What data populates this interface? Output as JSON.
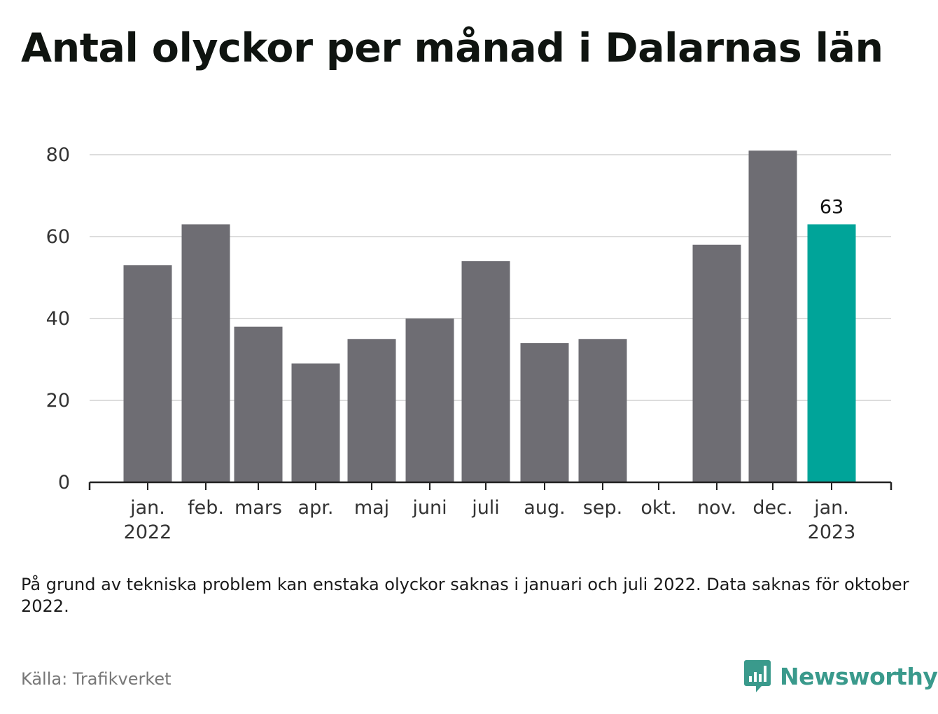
{
  "header": {
    "title": "Antal olyckor per månad i Dalarnas län"
  },
  "chart_data": {
    "type": "bar",
    "categories": [
      "jan. 2022",
      "feb.",
      "mars",
      "apr.",
      "maj",
      "juni",
      "juli",
      "aug.",
      "sep.",
      "okt.",
      "nov.",
      "dec.",
      "jan. 2023"
    ],
    "tick_labels": [
      [
        "jan.",
        "2022"
      ],
      [
        "feb."
      ],
      [
        "mars"
      ],
      [
        "apr."
      ],
      [
        "maj"
      ],
      [
        "juni"
      ],
      [
        "juli"
      ],
      [
        "aug."
      ],
      [
        "sep."
      ],
      [
        "okt."
      ],
      [
        "nov."
      ],
      [
        "dec."
      ],
      [
        "jan.",
        "2023"
      ]
    ],
    "values": [
      53,
      63,
      38,
      29,
      35,
      40,
      54,
      34,
      35,
      null,
      58,
      81,
      63
    ],
    "highlight_index": 12,
    "data_labels": [
      {
        "index": 12,
        "text": "63"
      }
    ],
    "yticks": [
      0,
      20,
      40,
      60,
      80
    ],
    "ylim": [
      0,
      80
    ],
    "grid": true,
    "colors": {
      "bar": "#6e6d73",
      "highlight": "#00a499",
      "grid": "#dddddd",
      "axis": "#222222"
    }
  },
  "footer": {
    "note": "På grund av tekniska problem kan enstaka olyckor saknas i januari och juli 2022. Data saknas för oktober 2022.",
    "source": "Källa: Trafikverket",
    "brand": "Newsworthy",
    "brand_color": "#3a9a8c"
  }
}
